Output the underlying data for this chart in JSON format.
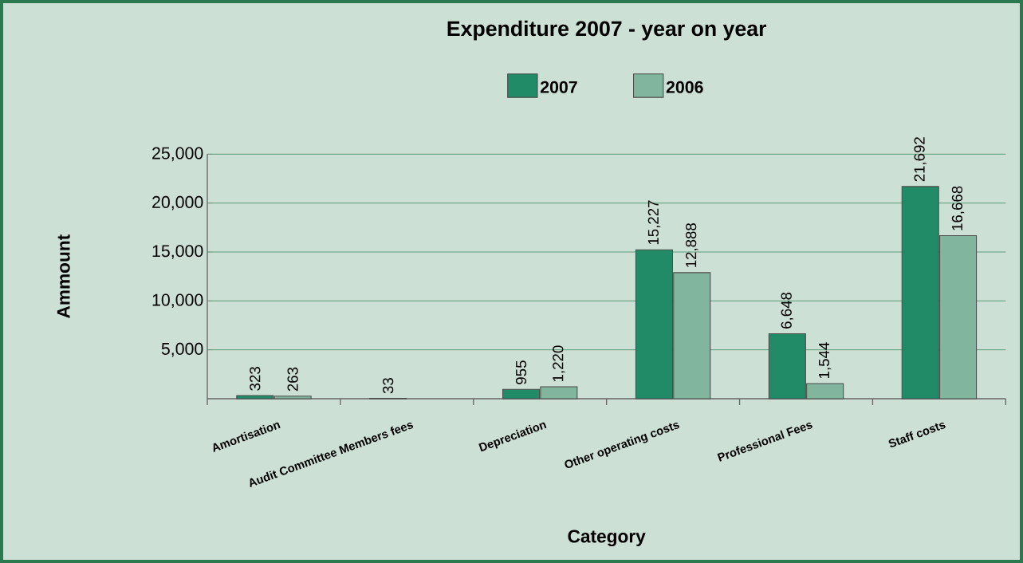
{
  "chart_data": {
    "type": "bar",
    "title": "Expenditure 2007 - year on year",
    "xlabel": "Category",
    "ylabel": "Ammount",
    "categories": [
      "Amortisation",
      "Audit Committee Members fees",
      "Depreciation",
      "Other operating costs",
      "Professional Fees",
      "Staff costs"
    ],
    "series": [
      {
        "name": "2007",
        "color": "#218b68",
        "values": [
          323,
          33,
          955,
          15227,
          6648,
          21692
        ],
        "value_labels": [
          "323",
          "33",
          "955",
          "15,227",
          "6,648",
          "21,692"
        ]
      },
      {
        "name": "2006",
        "color": "#82b59d",
        "values": [
          263,
          null,
          1220,
          12888,
          1544,
          16668
        ],
        "value_labels": [
          "263",
          null,
          "1,220",
          "12,888",
          "1,544",
          "16,668"
        ]
      }
    ],
    "ylim": [
      0,
      25000
    ],
    "yticks": [
      {
        "value": 5000,
        "label": "5,000"
      },
      {
        "value": 10000,
        "label": "10,000"
      },
      {
        "value": 15000,
        "label": "15,000"
      },
      {
        "value": 20000,
        "label": "20,000"
      },
      {
        "value": 25000,
        "label": "25,000"
      }
    ],
    "grid": "y",
    "legend": "top"
  }
}
